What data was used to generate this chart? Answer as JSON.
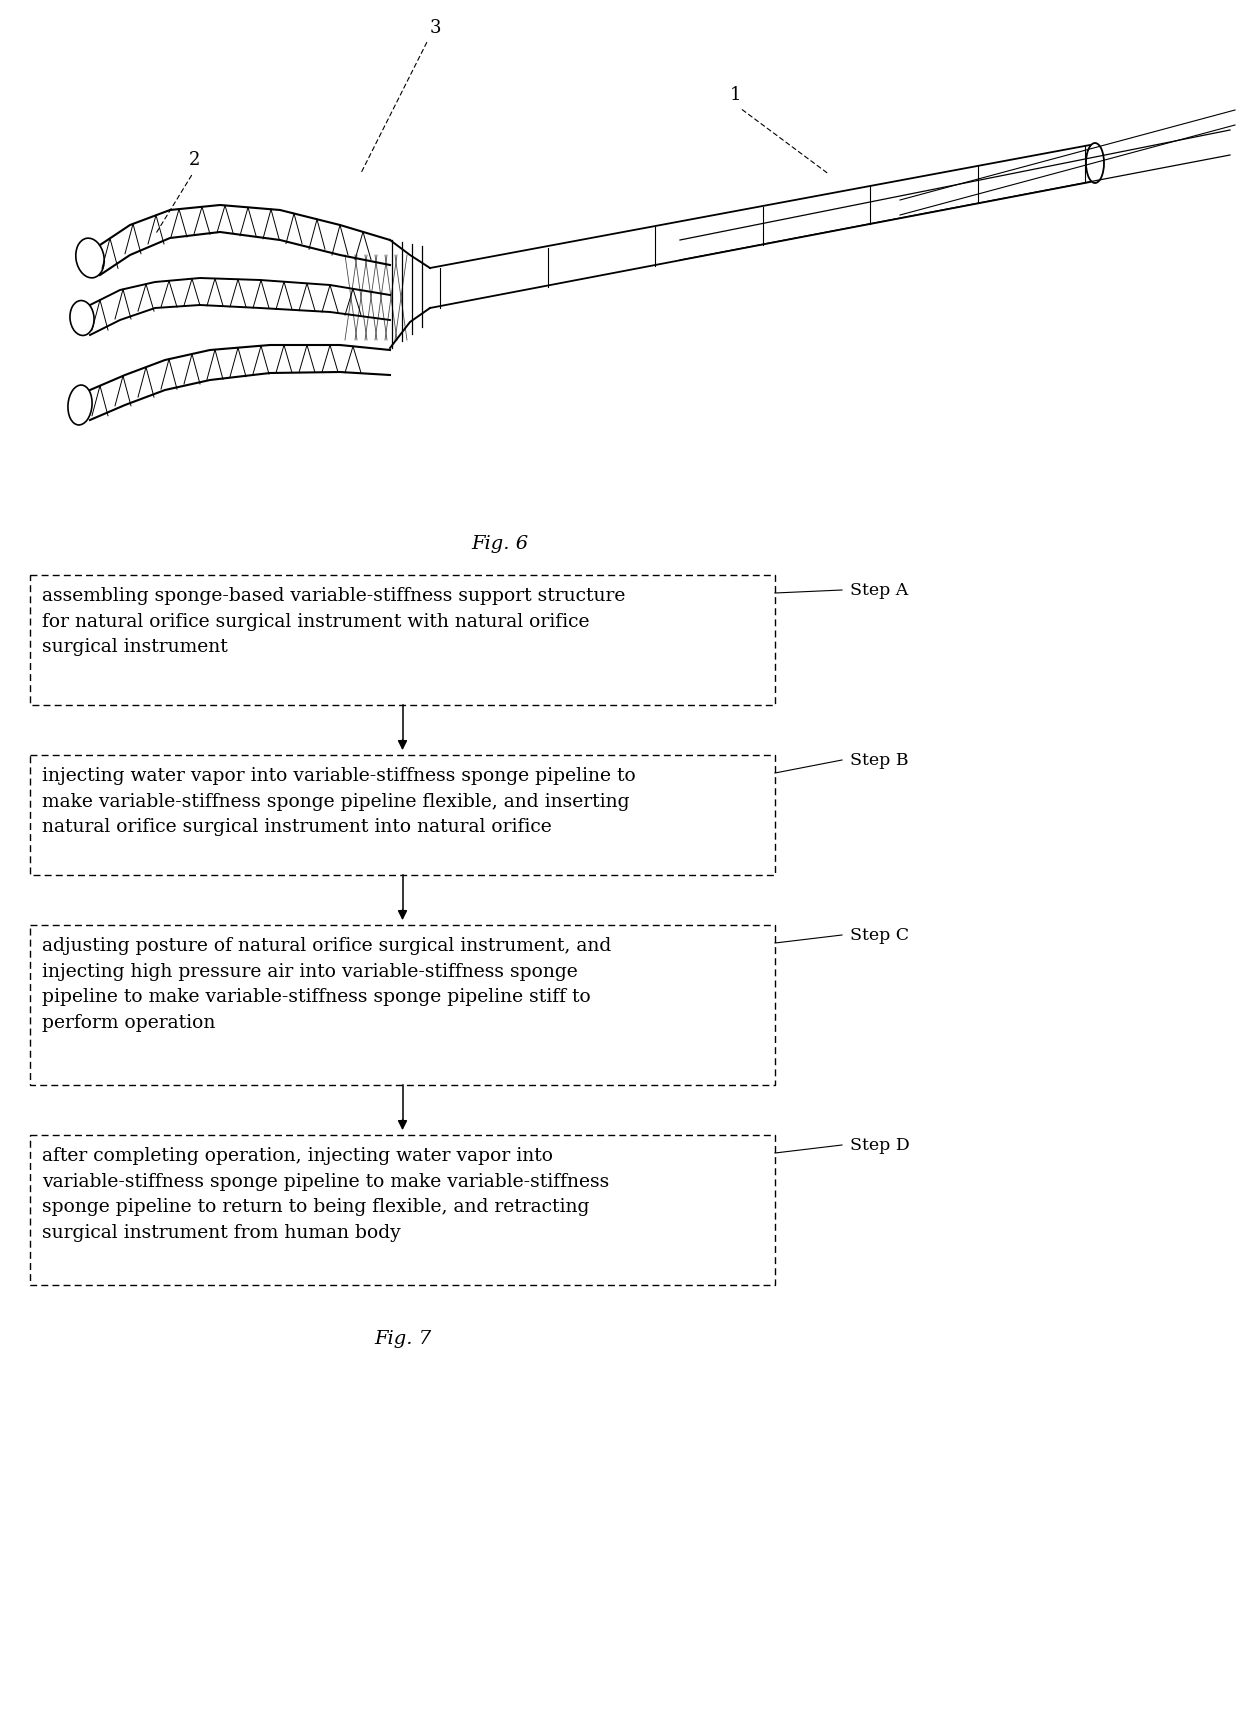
{
  "fig6_label": "Fig. 6",
  "fig7_label": "Fig. 7",
  "label_1": "1",
  "label_2": "2",
  "label_3": "3",
  "step_labels": [
    "Step A",
    "Step B",
    "Step C",
    "Step D"
  ],
  "step_texts": [
    "assembling sponge-based variable-stiffness support structure\nfor natural orifice surgical instrument with natural orifice\nsurgical instrument",
    "injecting water vapor into variable-stiffness sponge pipeline to\nmake variable-stiffness sponge pipeline flexible, and inserting\nnatural orifice surgical instrument into natural orifice",
    "adjusting posture of natural orifice surgical instrument, and\ninjecting high pressure air into variable-stiffness sponge\npipeline to make variable-stiffness sponge pipeline stiff to\nperform operation",
    "after completing operation, injecting water vapor into\nvariable-stiffness sponge pipeline to make variable-stiffness\nsponge pipeline to return to being flexible, and retracting\nsurgical instrument from human body"
  ],
  "box_color": "white",
  "box_edge_color": "black",
  "text_color": "black",
  "bg_color": "white",
  "font_size": 13.5,
  "label_font_size": 13,
  "fig_label_font_size": 14
}
